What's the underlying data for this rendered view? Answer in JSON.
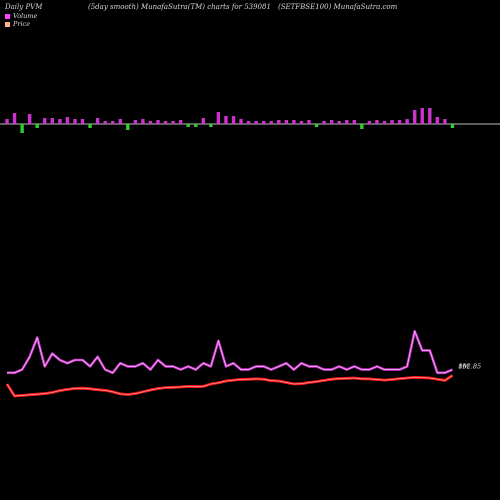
{
  "header": {
    "left": "Daily PVM",
    "center": "(5day smooth) MunafaSutra(TM) charts for 539081",
    "right": "(SETFBSE100) MunafaSutra.com"
  },
  "legend": {
    "volume_label": "Volume",
    "price_label": "Price",
    "volume_color": "#ff40ff",
    "price_color": "#ffb090"
  },
  "chart_data": {
    "type": "line",
    "colors": {
      "volume_up": "#cc33cc",
      "volume_down": "#33cc33",
      "volume_line": "#cc33cc",
      "volume_line_glow": "#ffffff",
      "price_line": "#ff1a1a",
      "price_line_glow": "#ffffff",
      "baseline": "#ffffff"
    },
    "volume_bars": {
      "values": [
        5,
        11,
        9,
        10,
        4,
        6,
        6,
        5,
        7,
        5,
        5,
        4,
        6,
        3,
        3,
        5,
        6,
        4,
        5,
        3,
        4,
        3,
        3,
        4,
        3,
        3,
        6,
        3,
        12,
        8,
        8,
        5,
        3,
        3,
        3,
        3,
        4,
        4,
        4,
        3,
        4,
        3,
        3,
        4,
        3,
        4,
        4,
        5,
        3,
        4,
        3,
        4,
        4,
        5,
        14,
        16,
        16,
        7,
        5,
        4
      ],
      "direction": [
        1,
        1,
        -1,
        1,
        -1,
        1,
        1,
        1,
        1,
        1,
        1,
        -1,
        1,
        1,
        1,
        1,
        -1,
        1,
        1,
        1,
        1,
        1,
        1,
        1,
        -1,
        -1,
        1,
        -1,
        1,
        1,
        1,
        1,
        1,
        1,
        1,
        1,
        1,
        1,
        1,
        1,
        1,
        -1,
        1,
        1,
        1,
        1,
        1,
        -1,
        1,
        1,
        1,
        1,
        1,
        1,
        1,
        1,
        1,
        1,
        1,
        -1
      ]
    },
    "volume_line": [
      1,
      1,
      2,
      6,
      12,
      3,
      7,
      5,
      4,
      5,
      5,
      3,
      6,
      2,
      1,
      4,
      3,
      3,
      4,
      2,
      5,
      3,
      3,
      2,
      3,
      2,
      4,
      3,
      11,
      3,
      4,
      2,
      2,
      3,
      3,
      2,
      3,
      4,
      2,
      4,
      3,
      3,
      2,
      2,
      3,
      2,
      3,
      2,
      2,
      3,
      2,
      2,
      2,
      3,
      14,
      8,
      8,
      1,
      1,
      2
    ],
    "price_line": [
      100,
      96,
      96.2,
      96.4,
      96.6,
      96.8,
      97.2,
      97.8,
      98.2,
      98.5,
      98.6,
      98.4,
      98.1,
      97.9,
      97.4,
      96.7,
      96.5,
      96.8,
      97.4,
      98,
      98.5,
      98.8,
      98.9,
      99,
      99.2,
      99.1,
      99.2,
      100,
      100.4,
      101,
      101.3,
      101.5,
      101.6,
      101.7,
      101.6,
      101.1,
      101,
      100.5,
      100,
      100.1,
      100.5,
      100.8,
      101.2,
      101.6,
      101.8,
      101.9,
      102,
      101.7,
      101.7,
      101.5,
      101.3,
      101.5,
      101.8,
      102,
      102.2,
      102.1,
      102,
      101.6,
      101.2,
      102.85
    ],
    "end_labels": {
      "volume": "0M",
      "price": "102.85"
    }
  }
}
